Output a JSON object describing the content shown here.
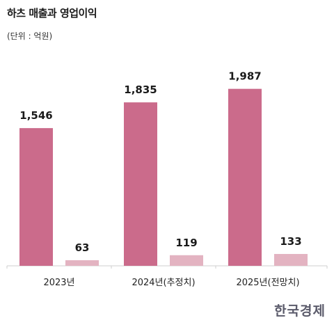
{
  "title": "하츠 매출과 영업이익",
  "unit": "(단위 : 억원)",
  "logo": "한국경제",
  "colors": {
    "revenue": "#cb6b8b",
    "operating_profit": "#e3b3c1",
    "axis": "#cfcfcf"
  },
  "chart_data": {
    "type": "bar",
    "categories": [
      "2023년",
      "2024년(추정치)",
      "2025년(전망치)"
    ],
    "series": [
      {
        "values": [
          1546,
          1835,
          1987
        ],
        "labels": [
          "1,546",
          "1,835",
          "1,987"
        ]
      },
      {
        "values": [
          63,
          119,
          133
        ],
        "labels": [
          "63",
          "119",
          "133"
        ]
      }
    ],
    "ylim": [
      0,
      2000
    ],
    "grid": false,
    "legend": "none"
  }
}
